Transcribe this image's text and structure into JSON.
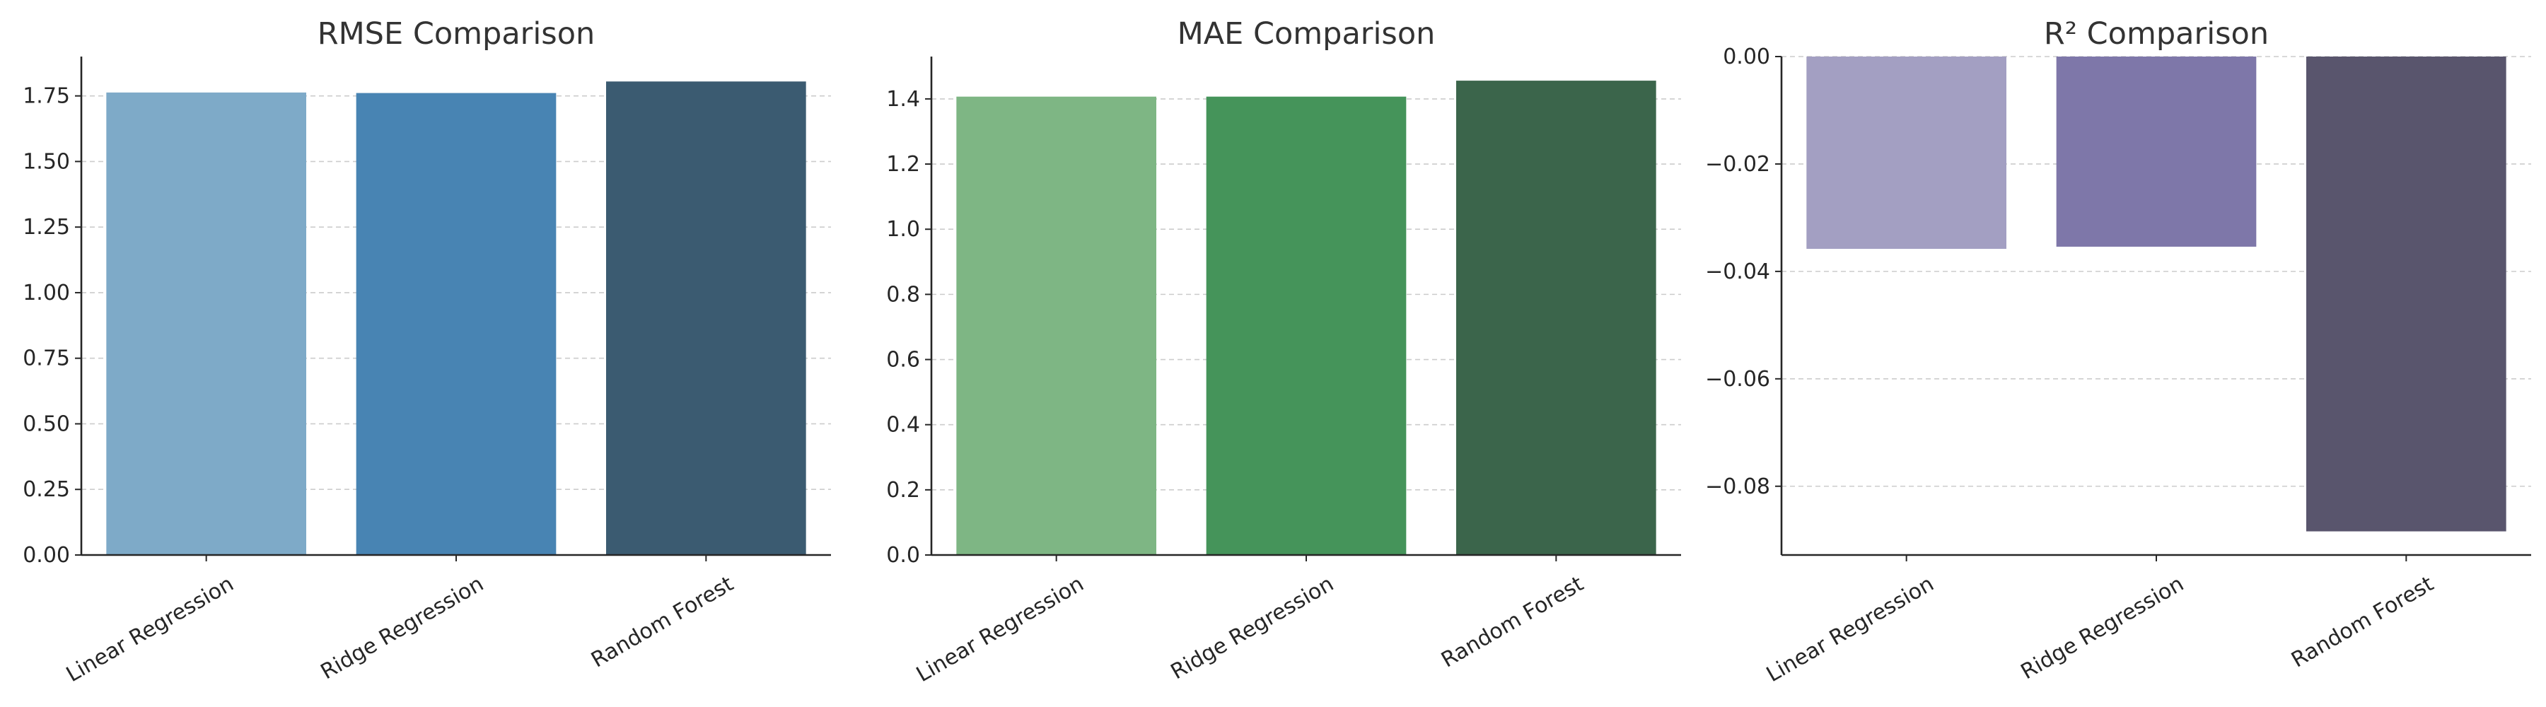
{
  "chart_data": [
    {
      "type": "bar",
      "title": "RMSE Comparison",
      "categories": [
        "Linear Regression",
        "Ridge Regression",
        "Random Forest"
      ],
      "values": [
        1.763,
        1.761,
        1.805
      ],
      "colors": [
        "#7eaac8",
        "#4884b3",
        "#3b5b71"
      ],
      "ylim": [
        0,
        1.9
      ],
      "yticks": [
        0.0,
        0.25,
        0.5,
        0.75,
        1.0,
        1.25,
        1.5,
        1.75
      ],
      "ytick_labels": [
        "0.00",
        "0.25",
        "0.50",
        "0.75",
        "1.00",
        "1.25",
        "1.50",
        "1.75"
      ],
      "grid": true
    },
    {
      "type": "bar",
      "title": "MAE Comparison",
      "categories": [
        "Linear Regression",
        "Ridge Regression",
        "Random Forest"
      ],
      "values": [
        1.407,
        1.407,
        1.456
      ],
      "colors": [
        "#7eb684",
        "#45945a",
        "#3b654b"
      ],
      "ylim": [
        0,
        1.53
      ],
      "yticks": [
        0.0,
        0.2,
        0.4,
        0.6,
        0.8,
        1.0,
        1.2,
        1.4
      ],
      "ytick_labels": [
        "0.0",
        "0.2",
        "0.4",
        "0.6",
        "0.8",
        "1.0",
        "1.2",
        "1.4"
      ],
      "grid": true
    },
    {
      "type": "bar",
      "title": "R² Comparison",
      "categories": [
        "Linear Regression",
        "Ridge Regression",
        "Random Forest"
      ],
      "values": [
        -0.0358,
        -0.0354,
        -0.0884
      ],
      "colors": [
        "#a39fc2",
        "#7e77a9",
        "#59556d"
      ],
      "ylim": [
        -0.0928,
        0.0
      ],
      "yticks": [
        0.0,
        -0.02,
        -0.04,
        -0.06,
        -0.08
      ],
      "ytick_labels": [
        "0.00",
        "−0.02",
        "−0.04",
        "−0.06",
        "−0.08"
      ],
      "grid": true
    }
  ]
}
